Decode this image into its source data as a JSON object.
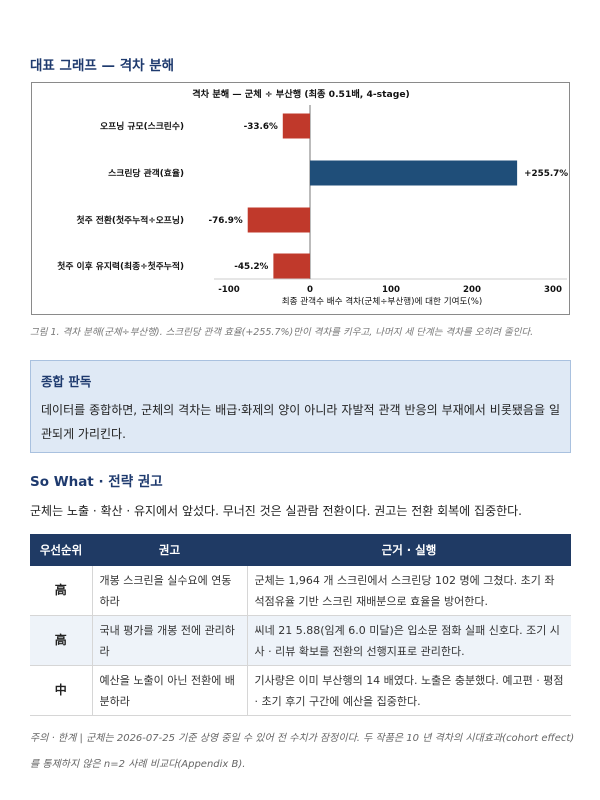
{
  "section_chart": {
    "heading": "대표 그래프 — 격차 분해"
  },
  "chart_data": {
    "type": "bar",
    "orientation": "horizontal",
    "title": "격차 분해 — 군체 ÷ 부산행 (최종 0.51배, 4-stage)",
    "xlabel": "최종 관객수 배수 격차(군체÷부산행)에 대한 기여도(%)",
    "ylabel": "",
    "categories": [
      "오프닝 규모(스크린수)",
      "스크린당 관객(효율)",
      "첫주 전환(첫주누적÷오프닝)",
      "첫주 이후 유지력(최종÷첫주누적)"
    ],
    "values": [
      -33.6,
      255.7,
      -76.9,
      -45.2
    ],
    "value_labels": [
      "-33.6%",
      "+255.7%",
      "-76.9%",
      "-45.2%"
    ],
    "xlim": [
      -100,
      300
    ],
    "xticks": [
      -100,
      0,
      100,
      200,
      300
    ],
    "grid": false,
    "colors": {
      "positive": "#1f4e79",
      "negative": "#c0392b"
    }
  },
  "caption": "그림 1. 격차 분해(군체÷부산행). 스크린당 관객 효율(+255.7%)만이 격차를 키우고, 나머지 세 단계는 격차를 오히려 줄인다.",
  "verdict": {
    "title": "종합 판독",
    "body": "데이터를 종합하면, 군체의 격차는 배급·화제의 양이 아니라 자발적 관객 반응의 부재에서 비롯됐음을 일관되게 가리킨다."
  },
  "section_sowhat": {
    "heading": "So What · 전략 권고",
    "intro": "군체는 노출 · 확산 · 유지에서 앞섰다. 무너진 것은 실관람 전환이다. 권고는 전환 회복에 집중한다."
  },
  "table": {
    "headers": [
      "우선순위",
      "권고",
      "근거 · 실행"
    ],
    "rows": [
      {
        "priority": "高",
        "recommendation": "개봉 스크린을 실수요에 연동하라",
        "evidence": "군체는 1,964 개 스크린에서 스크린당 102 명에 그쳤다. 초기 좌석점유율 기반 스크린 재배분으로 효율을 방어한다."
      },
      {
        "priority": "高",
        "recommendation": "국내 평가를 개봉 전에 관리하라",
        "evidence": "씨네 21 5.88(임계 6.0 미달)은 입소문 점화 실패 신호다. 조기 시사 · 리뷰 확보를 전환의 선행지표로 관리한다."
      },
      {
        "priority": "中",
        "recommendation": "예산을 노출이 아닌 전환에 배분하라",
        "evidence": "기사량은 이미 부산행의 14 배였다. 노출은 충분했다. 예고편 · 평점 · 초기 후기 구간에 예산을 집중한다."
      }
    ]
  },
  "note": "주의 · 한계 | 군체는 2026-07-25 기준 상영 중일 수 있어 전 수치가 잠정이다. 두 작품은 10 년 격차의 시대효과(cohort effect)를 통제하지 않은 n=2 사례 비교다(Appendix B)."
}
